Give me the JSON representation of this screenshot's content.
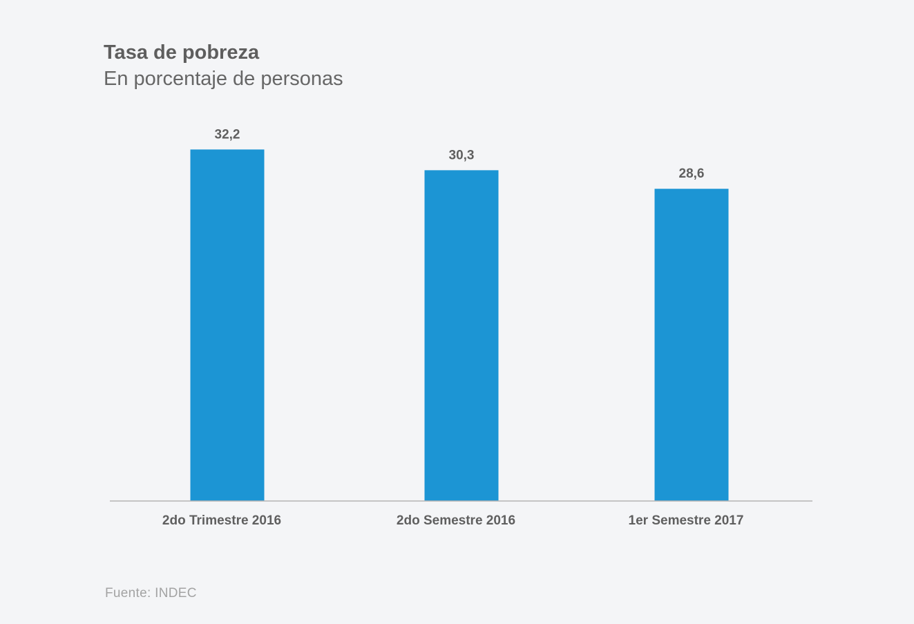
{
  "title": "Tasa de pobreza",
  "subtitle": "En porcentaje de personas",
  "source": "Fuente: INDEC",
  "colors": {
    "bar": "#1c95d4",
    "axis": "#b4b4b4",
    "background": "#f4f5f7"
  },
  "chart_data": {
    "type": "bar",
    "title": "Tasa de pobreza",
    "subtitle": "En porcentaje de personas",
    "categories": [
      "2do Trimestre 2016",
      "2do Semestre 2016",
      "1er Semestre 2017"
    ],
    "values": [
      32.2,
      30.3,
      28.6
    ],
    "value_labels": [
      "32,2",
      "30,3",
      "28,6"
    ],
    "xlabel": "",
    "ylabel": "",
    "ylim": [
      0,
      34.5
    ],
    "grid": false,
    "legend": "none"
  }
}
